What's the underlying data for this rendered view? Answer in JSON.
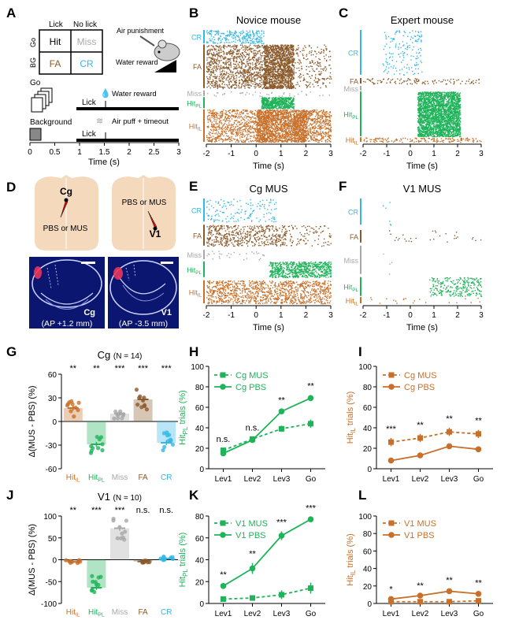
{
  "colors": {
    "hitIL": "#c8702a",
    "hitPL": "#1fb35a",
    "miss": "#a8a8a8",
    "fa": "#8b5a2b",
    "cr": "#35b7e5",
    "black": "#000000",
    "brain": "#f5d9bd",
    "slice": "#0a1670",
    "sliceRed": "#e8355a"
  },
  "panel_labels": {
    "A": "A",
    "B": "B",
    "C": "C",
    "D": "D",
    "E": "E",
    "F": "F",
    "G": "G",
    "H": "H",
    "I": "I",
    "J": "J",
    "K": "K",
    "L": "L"
  },
  "A": {
    "lick": "Lick",
    "nolick": "No lick",
    "go": "Go",
    "bg": "BG",
    "hit": "Hit",
    "miss": "Miss",
    "fa": "FA",
    "cr": "CR",
    "air_punishment": "Air punishment",
    "water_reward": "Water reward",
    "go_label": "Go",
    "background_label": "Background",
    "lick1": "Lick",
    "lick2": "Lick",
    "water_reward2": "Water reward",
    "air_puff": "Air puff + timeout",
    "xticks": [
      "0",
      "0.5",
      "1",
      "1.5",
      "2",
      "2.5",
      "3"
    ],
    "xlabel": "Time (s)"
  },
  "rasters": {
    "B": {
      "title": "Novice mouse",
      "rows": [
        "CR",
        "FA",
        "Miss",
        "HitPL",
        "HitIL"
      ]
    },
    "C": {
      "title": "Expert mouse",
      "rows": [
        "CR",
        "FA",
        "Miss",
        "HitPL",
        "HitIL"
      ]
    },
    "E": {
      "title": "Cg MUS",
      "rows": [
        "CR",
        "FA",
        "Miss",
        "HitPL",
        "HitIL"
      ]
    },
    "F": {
      "title": "V1 MUS",
      "rows": [
        "CR",
        "FA",
        "Miss",
        "HitPL",
        "HitIL"
      ]
    },
    "xticks": [
      "-2",
      "-1",
      "0",
      "1",
      "2",
      "3"
    ],
    "xlabel": "Time (s)"
  },
  "D": {
    "cg": "Cg",
    "v1": "V1",
    "pbs_mus_left": "PBS or MUS",
    "pbs_mus_right": "PBS or MUS",
    "slice1_label": "Cg",
    "slice1_ap": "(AP +1.2 mm)",
    "slice2_label": "V1",
    "slice2_ap": "(AP -3.5 mm)"
  },
  "chart_data": [
    {
      "panel": "G",
      "type": "bar",
      "title": "Cg",
      "n": "(N = 14)",
      "ylabel": "Δ(MUS - PBS) (%)",
      "ylim": [
        -60,
        60
      ],
      "yticks": [
        "60",
        "30",
        "0",
        "-30",
        "-60"
      ],
      "categories": [
        "HitIL",
        "HitPL",
        "Miss",
        "FA",
        "CR"
      ],
      "values": [
        17,
        -29,
        10,
        28,
        -27
      ],
      "errors": [
        3,
        3,
        2,
        3,
        3
      ],
      "sig": [
        "**",
        "**",
        "***",
        "***",
        "***"
      ]
    },
    {
      "panel": "J",
      "type": "bar",
      "title": "V1",
      "n": "(N = 10)",
      "ylabel": "Δ(MUS - PBS) (%)",
      "ylim": [
        -100,
        100
      ],
      "yticks": [
        "100",
        "50",
        "0",
        "-50",
        "-100"
      ],
      "categories": [
        "HitIL",
        "HitPL",
        "Miss",
        "FA",
        "CR"
      ],
      "values": [
        -5,
        -64,
        72,
        -4,
        3
      ],
      "errors": [
        2,
        5,
        6,
        2,
        2
      ],
      "sig": [
        "**",
        "***",
        "***",
        "n.s.",
        "n.s."
      ]
    },
    {
      "panel": "H",
      "type": "line",
      "ylabel": "HitPL trials (%)",
      "ylim": [
        0,
        100
      ],
      "yticks": [
        "100",
        "80",
        "60",
        "40",
        "20",
        "0"
      ],
      "categories": [
        "Lev1",
        "Lev2",
        "Lev3",
        "Go"
      ],
      "series": [
        {
          "name": "Cg MUS",
          "values": [
            18,
            29,
            39,
            44
          ],
          "errors": [
            2,
            2,
            3,
            4
          ],
          "dashed": true
        },
        {
          "name": "Cg PBS",
          "values": [
            15,
            28,
            56,
            69
          ],
          "errors": [
            2,
            2,
            2,
            3
          ],
          "dashed": false
        }
      ],
      "sig": [
        "n.s.",
        "n.s.",
        "**",
        "**"
      ]
    },
    {
      "panel": "I",
      "type": "line",
      "ylabel": "HitIL trials (%)",
      "ylim": [
        0,
        100
      ],
      "yticks": [
        "100",
        "80",
        "60",
        "40",
        "20",
        "0"
      ],
      "categories": [
        "Lev1",
        "Lev2",
        "Lev3",
        "Go"
      ],
      "series": [
        {
          "name": "Cg MUS",
          "values": [
            26,
            30,
            36,
            34
          ],
          "errors": [
            4,
            4,
            4,
            4
          ],
          "dashed": true
        },
        {
          "name": "Cg PBS",
          "values": [
            8,
            13,
            22,
            19
          ],
          "errors": [
            1,
            1,
            2,
            2
          ],
          "dashed": false
        }
      ],
      "sig": [
        "***",
        "**",
        "**",
        "**"
      ]
    },
    {
      "panel": "K",
      "type": "line",
      "ylabel": "HitPL trials (%)",
      "ylim": [
        0,
        80
      ],
      "yticks": [
        "80",
        "60",
        "40",
        "20",
        "0"
      ],
      "categories": [
        "Lev1",
        "Lev2",
        "Lev3",
        "Go"
      ],
      "series": [
        {
          "name": "V1 MUS",
          "values": [
            4,
            5,
            8,
            14
          ],
          "errors": [
            1,
            2,
            4,
            5
          ],
          "dashed": true
        },
        {
          "name": "V1 PBS",
          "values": [
            16,
            32,
            62,
            77
          ],
          "errors": [
            2,
            5,
            4,
            2
          ],
          "dashed": false
        }
      ],
      "sig": [
        "**",
        "**",
        "***",
        "***"
      ]
    },
    {
      "panel": "L",
      "type": "line",
      "ylabel": "HitIL trials (%)",
      "ylim": [
        0,
        100
      ],
      "yticks": [
        "100",
        "80",
        "60",
        "40",
        "20",
        "0"
      ],
      "categories": [
        "Lev1",
        "Lev2",
        "Lev3",
        "Go"
      ],
      "series": [
        {
          "name": "V1 MUS",
          "values": [
            2,
            2,
            2,
            3
          ],
          "errors": [
            1,
            1,
            1,
            1
          ],
          "dashed": true
        },
        {
          "name": "V1 PBS",
          "values": [
            5,
            9,
            14,
            11
          ],
          "errors": [
            1,
            1,
            2,
            2
          ],
          "dashed": false
        }
      ],
      "sig": [
        "*",
        "**",
        "**",
        "**"
      ]
    }
  ]
}
